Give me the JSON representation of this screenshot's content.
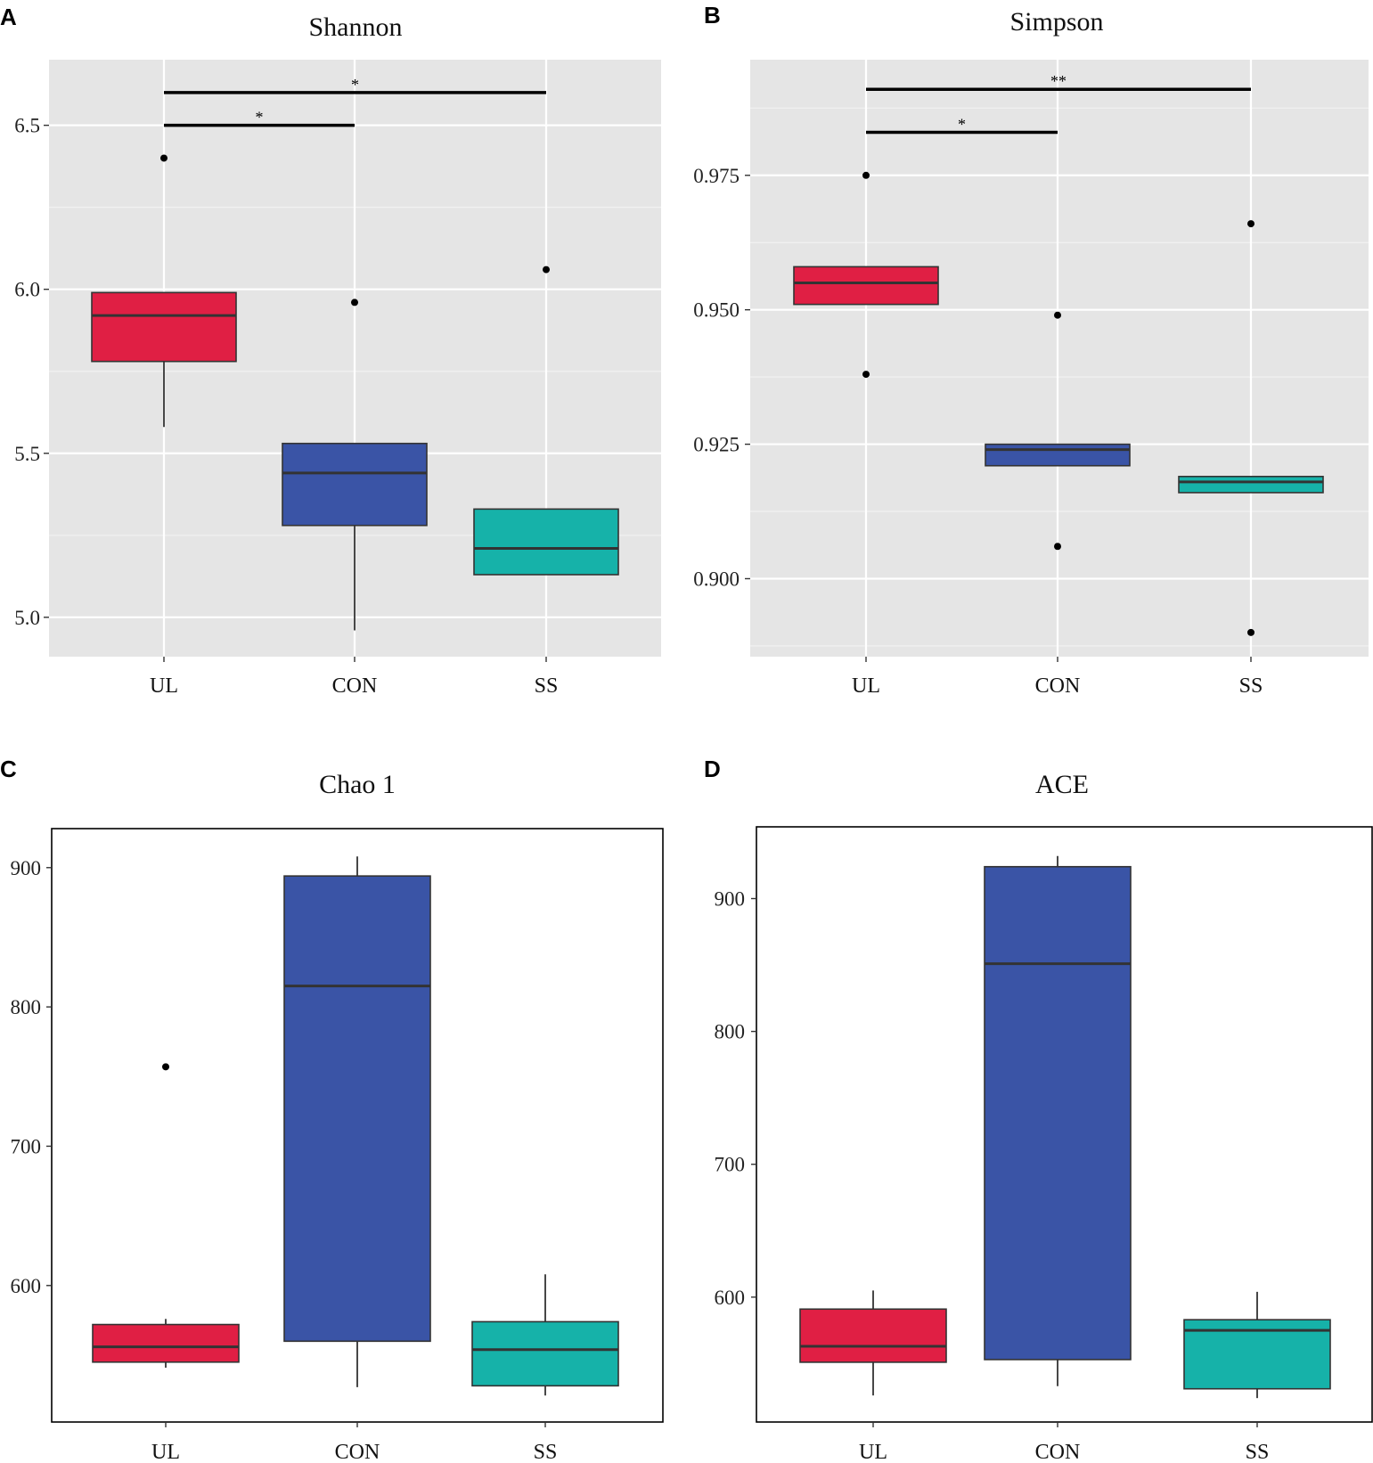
{
  "colors": {
    "UL": "#e01f44",
    "CON": "#3a54a6",
    "SS": "#16b2a9",
    "panel_bg_gray": "#e5e5e5",
    "outline": "#333333"
  },
  "chart_data": [
    {
      "panel": "A",
      "type": "box",
      "title": "Shannon",
      "style": "gray-grid",
      "categories": [
        "UL",
        "CON",
        "SS"
      ],
      "ylim": [
        4.88,
        6.7
      ],
      "yticks": [
        5.0,
        5.5,
        6.0,
        6.5
      ],
      "ytick_labels": [
        "5.0",
        "5.5",
        "6.0",
        "6.5"
      ],
      "boxes": [
        {
          "category": "UL",
          "q1": 5.78,
          "median": 5.92,
          "q3": 5.99,
          "whisker_low": 5.58,
          "whisker_high": 5.99,
          "outliers": [
            6.4
          ]
        },
        {
          "category": "CON",
          "q1": 5.28,
          "median": 5.44,
          "q3": 5.53,
          "whisker_low": 4.96,
          "whisker_high": 5.53,
          "outliers": [
            5.96
          ]
        },
        {
          "category": "SS",
          "q1": 5.13,
          "median": 5.21,
          "q3": 5.33,
          "whisker_low": 5.13,
          "whisker_high": 5.33,
          "outliers": [
            6.06
          ]
        }
      ],
      "significance": [
        {
          "from": "UL",
          "to": "CON",
          "y": 6.5,
          "label": "*"
        },
        {
          "from": "UL",
          "to": "SS",
          "y": 6.6,
          "label": "*"
        }
      ]
    },
    {
      "panel": "B",
      "type": "box",
      "title": "Simpson",
      "style": "gray-grid",
      "categories": [
        "UL",
        "CON",
        "SS"
      ],
      "ylim": [
        0.8855,
        0.9965
      ],
      "yticks": [
        0.9,
        0.925,
        0.95,
        0.975
      ],
      "ytick_labels": [
        "0.900",
        "0.925",
        "0.950",
        "0.975"
      ],
      "boxes": [
        {
          "category": "UL",
          "q1": 0.951,
          "median": 0.955,
          "q3": 0.958,
          "whisker_low": 0.951,
          "whisker_high": 0.958,
          "outliers": [
            0.975,
            0.938
          ]
        },
        {
          "category": "CON",
          "q1": 0.921,
          "median": 0.924,
          "q3": 0.925,
          "whisker_low": 0.921,
          "whisker_high": 0.925,
          "outliers": [
            0.949,
            0.906
          ]
        },
        {
          "category": "SS",
          "q1": 0.916,
          "median": 0.918,
          "q3": 0.919,
          "whisker_low": 0.916,
          "whisker_high": 0.919,
          "outliers": [
            0.966,
            0.89
          ]
        }
      ],
      "significance": [
        {
          "from": "UL",
          "to": "CON",
          "y": 0.983,
          "label": "*"
        },
        {
          "from": "UL",
          "to": "SS",
          "y": 0.991,
          "label": "**"
        }
      ]
    },
    {
      "panel": "C",
      "type": "box",
      "title": "Chao 1",
      "style": "white-frame",
      "categories": [
        "UL",
        "CON",
        "SS"
      ],
      "ylim": [
        502,
        928
      ],
      "yticks": [
        600,
        700,
        800,
        900
      ],
      "ytick_labels": [
        "600",
        "700",
        "800",
        "900"
      ],
      "boxes": [
        {
          "category": "UL",
          "q1": 545,
          "median": 556,
          "q3": 572,
          "whisker_low": 541,
          "whisker_high": 576,
          "outliers": [
            757
          ]
        },
        {
          "category": "CON",
          "q1": 560,
          "median": 815,
          "q3": 894,
          "whisker_low": 527,
          "whisker_high": 908,
          "outliers": []
        },
        {
          "category": "SS",
          "q1": 528,
          "median": 554,
          "q3": 574,
          "whisker_low": 521,
          "whisker_high": 608,
          "outliers": []
        }
      ],
      "significance": []
    },
    {
      "panel": "D",
      "type": "box",
      "title": "ACE",
      "style": "white-frame",
      "categories": [
        "UL",
        "CON",
        "SS"
      ],
      "ylim": [
        506,
        954
      ],
      "yticks": [
        600,
        700,
        800,
        900
      ],
      "ytick_labels": [
        "600",
        "700",
        "800",
        "900"
      ],
      "boxes": [
        {
          "category": "UL",
          "q1": 551,
          "median": 563,
          "q3": 591,
          "whisker_low": 526,
          "whisker_high": 605,
          "outliers": []
        },
        {
          "category": "CON",
          "q1": 553,
          "median": 851,
          "q3": 924,
          "whisker_low": 533,
          "whisker_high": 932,
          "outliers": []
        },
        {
          "category": "SS",
          "q1": 531,
          "median": 575,
          "q3": 583,
          "whisker_low": 524,
          "whisker_high": 604,
          "outliers": []
        }
      ],
      "significance": []
    }
  ]
}
